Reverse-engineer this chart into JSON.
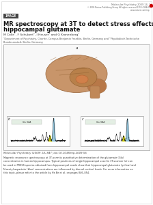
{
  "background_color": "#ffffff",
  "border_color": "#cccccc",
  "journal_line1": "Molecular Psychiatry 2009 14, 1",
  "journal_line2": "© 2009 Nature Publishing Group  All rights reserved 1359-4184/09",
  "journal_line3": "www.nature.com/mp",
  "open_access_dot_color": "#cc0000",
  "image_label": "IMAGE",
  "image_label_bg": "#444444",
  "image_label_color": "#ffffff",
  "title_line1": "MR spectroscopy at 3T to detect stress effects on",
  "title_line2": "hippocampal glutamate",
  "authors": "M Colle¹, F Schubert², I Heuser¹ and G Kronenberg¹",
  "affiliation1": "¹Department of Psychiatry, Charité, Campus Benjamin Franklin, Berlin, Germany and ²Physikalisch-Technische",
  "affiliation2": "Bundesanstalt, Berlin, Germany",
  "citation": "Molecular Psychiatry (2009) 14, 847; doi:10.1038/mp.2009.56",
  "caption1": "Magnetic resonance spectroscopy at 3T permits quantitative determination of the glutamate (Glu)",
  "caption2": "concentration in human hippocampus. Typical positions of single hippocampal voxel in 3T-scanner (a) can",
  "caption3": "be used in PRESS spectra obtained from hippocampal voxels show that hippocampal glutamate (yellow) and",
  "caption4": "N-acetyl-aspartate (blue) concentrations are influenced by diurnal cortisol levels. For more information on",
  "caption5": "this topic, please refer to the article by Ha Be et al. on pages 846–854.",
  "panel_bg": "#f0f0f0",
  "panel_border": "#999999",
  "glu_color": "#cccc00",
  "naa_color": "#7ab8d4",
  "spec_line_color": "#222222",
  "brain_color1": "#c8956a",
  "brain_color2": "#a07048",
  "hippo_color": "#d4804a"
}
